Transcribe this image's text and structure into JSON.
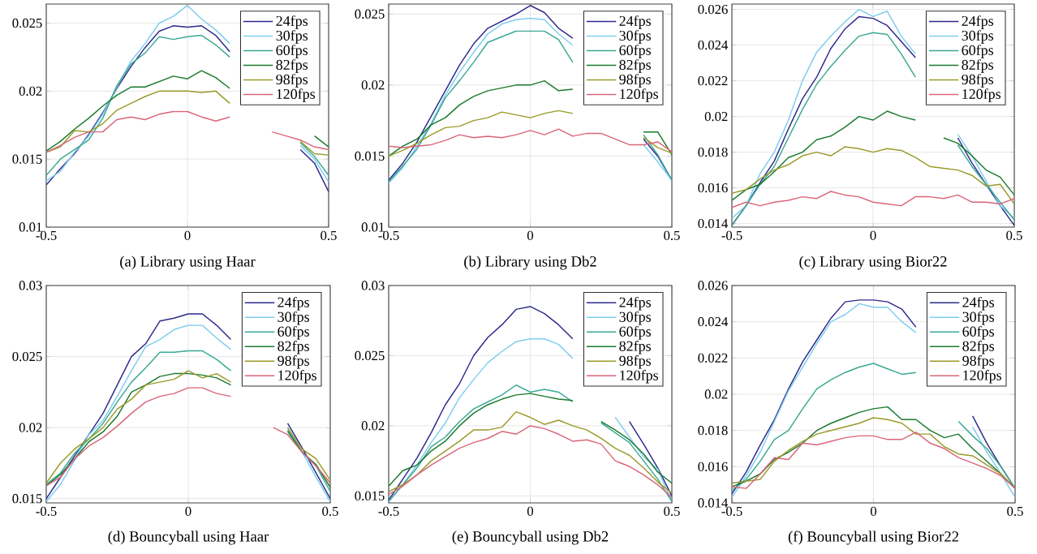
{
  "chart_data": [
    {
      "type": "line",
      "title": "(a) Library using Haar",
      "x": [
        -0.5,
        -0.45,
        -0.4,
        -0.35,
        -0.3,
        -0.25,
        -0.2,
        -0.15,
        -0.1,
        -0.05,
        0,
        0.05,
        0.1,
        0.15,
        0.2,
        0.25,
        0.3,
        0.35,
        0.4,
        0.45,
        0.5
      ],
      "xlim": [
        -0.5,
        0.5
      ],
      "ylim": [
        0.01,
        0.0264
      ],
      "xticks": [
        -0.5,
        0,
        0.5
      ],
      "yticks": [
        0.01,
        0.015,
        0.02,
        0.025
      ],
      "grid": true,
      "legend": "top right",
      "series": [
        {
          "name": "24fps",
          "color": "#2e2a8c",
          "values": [
            0.0131,
            0.0143,
            0.0154,
            0.0168,
            0.0184,
            0.0202,
            0.0218,
            0.0232,
            0.0244,
            0.0248,
            0.0247,
            0.0248,
            0.0241,
            0.0229,
            null,
            null,
            null,
            null,
            0.0157,
            0.0147,
            0.0126
          ]
        },
        {
          "name": "30fps",
          "color": "#7fcdee",
          "values": [
            0.0134,
            0.0141,
            0.0155,
            0.0167,
            0.0183,
            0.0203,
            0.0222,
            0.0235,
            0.025,
            0.0255,
            0.0263,
            0.0253,
            0.0245,
            0.0235,
            null,
            null,
            null,
            null,
            0.016,
            0.015,
            0.0133
          ]
        },
        {
          "name": "60fps",
          "color": "#3aa993",
          "values": [
            0.0138,
            0.015,
            0.0157,
            0.0164,
            0.018,
            0.0204,
            0.022,
            0.0228,
            0.024,
            0.0238,
            0.024,
            0.0241,
            0.0234,
            0.0225,
            null,
            null,
            null,
            null,
            0.0162,
            0.0152,
            0.0138
          ]
        },
        {
          "name": "82fps",
          "color": "#1a7a2e",
          "values": [
            0.0156,
            0.0163,
            0.0172,
            0.018,
            0.0189,
            0.0197,
            0.0203,
            0.0203,
            0.0207,
            0.0211,
            0.0209,
            0.0215,
            0.021,
            0.0202,
            null,
            null,
            null,
            null,
            null,
            0.0167,
            0.0159
          ]
        },
        {
          "name": "98fps",
          "color": "#9a9a2a",
          "values": [
            0.0155,
            0.0159,
            0.0171,
            0.017,
            0.0176,
            0.0186,
            0.0191,
            0.0196,
            0.02,
            0.02,
            0.02,
            0.0199,
            0.02,
            0.0191,
            null,
            null,
            null,
            null,
            0.0163,
            0.0154,
            0.0153
          ]
        },
        {
          "name": "120fps",
          "color": "#d9667a",
          "values": [
            0.0155,
            0.016,
            0.0166,
            0.017,
            0.017,
            0.0179,
            0.0181,
            0.0179,
            0.0183,
            0.0185,
            0.0185,
            0.0181,
            0.0178,
            0.0181,
            null,
            null,
            0.017,
            0.0167,
            0.0164,
            0.0159,
            0.0157
          ]
        }
      ]
    },
    {
      "type": "line",
      "title": "(b) Library using Db2",
      "x": [
        -0.5,
        -0.45,
        -0.4,
        -0.35,
        -0.3,
        -0.25,
        -0.2,
        -0.15,
        -0.1,
        -0.05,
        0,
        0.05,
        0.1,
        0.15,
        0.2,
        0.25,
        0.3,
        0.35,
        0.4,
        0.45,
        0.5
      ],
      "xlim": [
        -0.5,
        0.5
      ],
      "ylim": [
        0.01,
        0.0257
      ],
      "xticks": [
        -0.5,
        0,
        0.5
      ],
      "yticks": [
        0.01,
        0.015,
        0.02,
        0.025
      ],
      "grid": true,
      "legend": "top right",
      "series": [
        {
          "name": "24fps",
          "color": "#2e2a8c",
          "values": [
            0.0133,
            0.0145,
            0.016,
            0.0178,
            0.0196,
            0.0214,
            0.0229,
            0.024,
            0.0245,
            0.025,
            0.0256,
            0.0251,
            0.024,
            0.0233,
            null,
            null,
            null,
            null,
            0.0162,
            0.015,
            0.0133
          ]
        },
        {
          "name": "30fps",
          "color": "#7fcdee",
          "values": [
            0.0131,
            0.0142,
            0.0157,
            0.0173,
            0.0193,
            0.0209,
            0.0223,
            0.0236,
            0.0243,
            0.0246,
            0.0247,
            0.0246,
            0.0236,
            0.0228,
            null,
            null,
            null,
            null,
            0.0158,
            0.0146,
            0.0133
          ]
        },
        {
          "name": "60fps",
          "color": "#3aa993",
          "values": [
            0.0132,
            0.0143,
            0.0155,
            0.0172,
            0.0191,
            0.0203,
            0.0216,
            0.023,
            0.0234,
            0.0238,
            0.0238,
            0.0238,
            0.0232,
            0.0216,
            null,
            null,
            null,
            null,
            0.0165,
            0.0151,
            0.0133
          ]
        },
        {
          "name": "82fps",
          "color": "#1a7a2e",
          "values": [
            0.015,
            0.0157,
            0.0162,
            0.0172,
            0.0177,
            0.0186,
            0.0192,
            0.0196,
            0.0198,
            0.02,
            0.02,
            0.0203,
            0.0196,
            0.0197,
            null,
            null,
            null,
            null,
            0.0167,
            0.0167,
            0.0151
          ]
        },
        {
          "name": "98fps",
          "color": "#9a9a2a",
          "values": [
            0.015,
            0.0154,
            0.0159,
            0.0165,
            0.017,
            0.0171,
            0.0175,
            0.0177,
            0.0181,
            0.0179,
            0.0177,
            0.018,
            0.0182,
            0.018,
            null,
            null,
            null,
            null,
            0.0163,
            0.0156,
            0.0152
          ]
        },
        {
          "name": "120fps",
          "color": "#d9667a",
          "values": [
            0.0157,
            0.0156,
            0.0157,
            0.0158,
            0.0161,
            0.0165,
            0.0163,
            0.0164,
            0.0163,
            0.0165,
            0.0168,
            0.0165,
            0.0169,
            0.0164,
            0.0166,
            0.0166,
            0.0162,
            0.0158,
            0.0158,
            0.016,
            0.0153
          ]
        }
      ]
    },
    {
      "type": "line",
      "title": "(c) Library using Bior22",
      "x": [
        -0.5,
        -0.45,
        -0.4,
        -0.35,
        -0.3,
        -0.25,
        -0.2,
        -0.15,
        -0.1,
        -0.05,
        0,
        0.05,
        0.1,
        0.15,
        0.2,
        0.25,
        0.3,
        0.35,
        0.4,
        0.45,
        0.5
      ],
      "xlim": [
        -0.5,
        0.5
      ],
      "ylim": [
        0.0138,
        0.0263
      ],
      "xticks": [
        -0.5,
        0,
        0.5
      ],
      "yticks": [
        0.014,
        0.016,
        0.018,
        0.02,
        0.022,
        0.024,
        0.026
      ],
      "grid": true,
      "legend": "top right",
      "series": [
        {
          "name": "24fps",
          "color": "#2e2a8c",
          "values": [
            0.0139,
            0.015,
            0.0163,
            0.0175,
            0.0193,
            0.021,
            0.0222,
            0.0238,
            0.0249,
            0.0256,
            0.0255,
            0.0251,
            0.0242,
            0.0233,
            null,
            null,
            0.0188,
            0.0174,
            0.0162,
            0.015,
            0.0139
          ]
        },
        {
          "name": "30fps",
          "color": "#7fcdee",
          "values": [
            0.0143,
            0.015,
            0.0168,
            0.018,
            0.0198,
            0.022,
            0.0236,
            0.0245,
            0.0253,
            0.026,
            0.0256,
            0.0259,
            0.0245,
            0.0235,
            null,
            null,
            0.019,
            0.0178,
            0.0164,
            0.015,
            0.0143
          ]
        },
        {
          "name": "60fps",
          "color": "#3aa993",
          "values": [
            0.0139,
            0.015,
            0.0162,
            0.0172,
            0.0188,
            0.0204,
            0.0218,
            0.0228,
            0.0237,
            0.0245,
            0.0247,
            0.0246,
            0.0235,
            0.0222,
            null,
            null,
            0.0184,
            0.0172,
            0.0162,
            0.0152,
            0.0142
          ]
        },
        {
          "name": "82fps",
          "color": "#1a7a2e",
          "values": [
            0.0153,
            0.0159,
            0.0162,
            0.0169,
            0.0177,
            0.018,
            0.0187,
            0.0189,
            0.0194,
            0.02,
            0.0198,
            0.0203,
            0.02,
            0.0198,
            null,
            0.0188,
            0.0185,
            0.0178,
            0.017,
            0.0166,
            0.0156
          ]
        },
        {
          "name": "98fps",
          "color": "#9a9a2a",
          "values": [
            0.0157,
            0.0159,
            0.0165,
            0.017,
            0.0173,
            0.0178,
            0.018,
            0.0178,
            0.0183,
            0.0182,
            0.018,
            0.0182,
            0.0181,
            0.0177,
            0.0172,
            0.0171,
            0.017,
            0.0167,
            0.0161,
            0.0162,
            0.0151
          ]
        },
        {
          "name": "120fps",
          "color": "#d9667a",
          "values": [
            0.0149,
            0.0152,
            0.015,
            0.0152,
            0.0153,
            0.0155,
            0.0154,
            0.0158,
            0.0156,
            0.0155,
            0.0152,
            0.0151,
            0.015,
            0.0155,
            0.0155,
            0.0154,
            0.0156,
            0.0152,
            0.0152,
            0.0151,
            0.0154
          ]
        }
      ]
    },
    {
      "type": "line",
      "title": "(d) Bouncyball using Haar",
      "x": [
        -0.5,
        -0.45,
        -0.4,
        -0.35,
        -0.3,
        -0.25,
        -0.2,
        -0.15,
        -0.1,
        -0.05,
        0,
        0.05,
        0.1,
        0.15,
        0.2,
        0.25,
        0.3,
        0.35,
        0.4,
        0.45,
        0.5
      ],
      "xlim": [
        -0.5,
        0.5
      ],
      "ylim": [
        0.0147,
        0.03
      ],
      "xticks": [
        -0.5,
        0,
        0.5
      ],
      "yticks": [
        0.015,
        0.02,
        0.025,
        0.03
      ],
      "grid": true,
      "legend": "top right",
      "series": [
        {
          "name": "24fps",
          "color": "#2e2a8c",
          "values": [
            0.015,
            0.0165,
            0.018,
            0.0195,
            0.021,
            0.023,
            0.025,
            0.0259,
            0.0275,
            0.0277,
            0.028,
            0.028,
            0.0272,
            0.0262,
            null,
            null,
            null,
            0.0203,
            0.0186,
            0.0168,
            0.015
          ]
        },
        {
          "name": "30fps",
          "color": "#7fcdee",
          "values": [
            0.0148,
            0.016,
            0.0177,
            0.0195,
            0.0205,
            0.0222,
            0.024,
            0.0257,
            0.0262,
            0.0269,
            0.0272,
            0.0272,
            0.0263,
            0.0255,
            null,
            null,
            null,
            0.02,
            0.0183,
            0.0165,
            0.0148
          ]
        },
        {
          "name": "60fps",
          "color": "#3aa993",
          "values": [
            0.016,
            0.0168,
            0.0182,
            0.0192,
            0.0203,
            0.0218,
            0.0232,
            0.0242,
            0.0253,
            0.0253,
            0.0254,
            0.0254,
            0.0248,
            0.024,
            null,
            null,
            null,
            0.0197,
            0.0183,
            0.0173,
            0.0155
          ]
        },
        {
          "name": "82fps",
          "color": "#1a7a2e",
          "values": [
            0.0159,
            0.0167,
            0.0178,
            0.019,
            0.0197,
            0.0208,
            0.0225,
            0.023,
            0.0236,
            0.0238,
            0.0238,
            0.0237,
            0.0235,
            0.023,
            null,
            null,
            null,
            0.0198,
            0.0183,
            0.0174,
            0.0158
          ]
        },
        {
          "name": "98fps",
          "color": "#9a9a2a",
          "values": [
            0.0161,
            0.0175,
            0.0185,
            0.0192,
            0.02,
            0.0213,
            0.022,
            0.023,
            0.0232,
            0.0234,
            0.024,
            0.0235,
            0.0238,
            0.0232,
            null,
            null,
            null,
            0.02,
            0.0185,
            0.0178,
            0.0163
          ]
        },
        {
          "name": "120fps",
          "color": "#d9667a",
          "values": [
            0.0159,
            0.0165,
            0.0178,
            0.0187,
            0.0193,
            0.0201,
            0.021,
            0.0218,
            0.0222,
            0.0224,
            0.0228,
            0.0228,
            0.0224,
            0.0222,
            null,
            null,
            0.02,
            0.0195,
            0.0183,
            0.0173,
            0.0161
          ]
        }
      ]
    },
    {
      "type": "line",
      "title": "(e) Bouncyball using Db2",
      "x": [
        -0.5,
        -0.45,
        -0.4,
        -0.35,
        -0.3,
        -0.25,
        -0.2,
        -0.15,
        -0.1,
        -0.05,
        0,
        0.05,
        0.1,
        0.15,
        0.2,
        0.25,
        0.3,
        0.35,
        0.4,
        0.45,
        0.5
      ],
      "xlim": [
        -0.5,
        0.5
      ],
      "ylim": [
        0.0145,
        0.03
      ],
      "xticks": [
        -0.5,
        0,
        0.5
      ],
      "yticks": [
        0.015,
        0.02,
        0.025,
        0.03
      ],
      "grid": true,
      "legend": "top right",
      "series": [
        {
          "name": "24fps",
          "color": "#2e2a8c",
          "values": [
            0.0147,
            0.0162,
            0.0177,
            0.0195,
            0.0215,
            0.023,
            0.025,
            0.0263,
            0.0272,
            0.0283,
            0.0285,
            0.028,
            0.0272,
            0.0262,
            null,
            null,
            null,
            0.0203,
            0.0187,
            0.017,
            0.015
          ]
        },
        {
          "name": "30fps",
          "color": "#7fcdee",
          "values": [
            0.0146,
            0.0158,
            0.0172,
            0.0188,
            0.0202,
            0.022,
            0.0233,
            0.0245,
            0.0253,
            0.026,
            0.0262,
            0.0262,
            0.0258,
            0.0248,
            null,
            null,
            0.0206,
            0.0192,
            0.0178,
            0.0169,
            0.0146
          ]
        },
        {
          "name": "60fps",
          "color": "#3aa993",
          "values": [
            0.0146,
            0.0158,
            0.017,
            0.0185,
            0.0192,
            0.0203,
            0.0212,
            0.0217,
            0.0222,
            0.0229,
            0.0224,
            0.0226,
            0.0224,
            0.0217,
            null,
            0.0202,
            0.0195,
            0.0188,
            0.0175,
            0.0162,
            0.0146
          ]
        },
        {
          "name": "82fps",
          "color": "#1a7a2e",
          "values": [
            0.0157,
            0.0168,
            0.0172,
            0.0182,
            0.0189,
            0.02,
            0.0209,
            0.0215,
            0.0219,
            0.0222,
            0.0223,
            0.0221,
            0.0219,
            0.0218,
            null,
            0.0203,
            0.0197,
            0.019,
            0.018,
            0.0167,
            0.0159
          ]
        },
        {
          "name": "98fps",
          "color": "#9a9a2a",
          "values": [
            0.0153,
            0.0158,
            0.0165,
            0.0175,
            0.0182,
            0.0189,
            0.0197,
            0.0197,
            0.0199,
            0.021,
            0.0206,
            0.0201,
            0.0204,
            0.02,
            0.0197,
            0.0191,
            0.0184,
            0.0179,
            0.017,
            0.016,
            0.0152
          ]
        },
        {
          "name": "120fps",
          "color": "#d9667a",
          "values": [
            0.0151,
            0.0157,
            0.0165,
            0.0172,
            0.0178,
            0.0184,
            0.0188,
            0.0191,
            0.0196,
            0.0194,
            0.02,
            0.0198,
            0.0194,
            0.0189,
            0.019,
            0.0187,
            0.0175,
            0.0171,
            0.0165,
            0.0158,
            0.0149
          ]
        }
      ]
    },
    {
      "type": "line",
      "title": "(f) Bouncyball using Bior22",
      "x": [
        -0.5,
        -0.45,
        -0.4,
        -0.35,
        -0.3,
        -0.25,
        -0.2,
        -0.15,
        -0.1,
        -0.05,
        0,
        0.05,
        0.1,
        0.15,
        0.2,
        0.25,
        0.3,
        0.35,
        0.4,
        0.45,
        0.5
      ],
      "xlim": [
        -0.5,
        0.5
      ],
      "ylim": [
        0.014,
        0.026
      ],
      "xticks": [
        -0.5,
        0,
        0.5
      ],
      "yticks": [
        0.014,
        0.016,
        0.018,
        0.02,
        0.022,
        0.024,
        0.026
      ],
      "grid": true,
      "legend": "top right",
      "series": [
        {
          "name": "24fps",
          "color": "#2e2a8c",
          "values": [
            0.0145,
            0.0157,
            0.0172,
            0.0186,
            0.0203,
            0.0218,
            0.023,
            0.0242,
            0.0251,
            0.0252,
            0.0252,
            0.0251,
            0.0247,
            0.0237,
            null,
            null,
            null,
            0.0188,
            0.0173,
            0.016,
            0.0148
          ]
        },
        {
          "name": "30fps",
          "color": "#7fcdee",
          "values": [
            0.0143,
            0.0155,
            0.0168,
            0.0185,
            0.0202,
            0.0215,
            0.0228,
            0.024,
            0.0244,
            0.025,
            0.0248,
            0.0248,
            0.024,
            0.0234,
            null,
            null,
            null,
            0.0182,
            0.0168,
            0.0156,
            0.0143
          ]
        },
        {
          "name": "60fps",
          "color": "#3aa993",
          "values": [
            0.0147,
            0.0153,
            0.0163,
            0.0175,
            0.018,
            0.0192,
            0.0203,
            0.0208,
            0.0212,
            0.0215,
            0.0217,
            0.0214,
            0.0211,
            0.0212,
            null,
            null,
            0.0185,
            0.0177,
            0.017,
            0.016,
            0.0148
          ]
        },
        {
          "name": "82fps",
          "color": "#1a7a2e",
          "values": [
            0.0149,
            0.0152,
            0.0156,
            0.0164,
            0.0168,
            0.0173,
            0.018,
            0.0184,
            0.0187,
            0.019,
            0.0192,
            0.0193,
            0.0186,
            0.0186,
            0.018,
            0.0176,
            0.0178,
            0.017,
            0.0163,
            0.0156,
            0.0148
          ]
        },
        {
          "name": "98fps",
          "color": "#9a9a2a",
          "values": [
            0.0151,
            0.0152,
            0.0153,
            0.0163,
            0.0169,
            0.0174,
            0.0178,
            0.018,
            0.0182,
            0.0184,
            0.0187,
            0.0186,
            0.0184,
            0.0178,
            0.0178,
            0.0171,
            0.0167,
            0.0166,
            0.0161,
            0.0156,
            0.0148
          ]
        },
        {
          "name": "120fps",
          "color": "#d9667a",
          "values": [
            0.0149,
            0.0148,
            0.0156,
            0.0165,
            0.0164,
            0.0173,
            0.0172,
            0.0174,
            0.0176,
            0.0177,
            0.0177,
            0.0175,
            0.0175,
            0.0179,
            0.0173,
            0.017,
            0.0165,
            0.0162,
            0.0159,
            0.0155,
            0.0148
          ]
        }
      ]
    }
  ]
}
